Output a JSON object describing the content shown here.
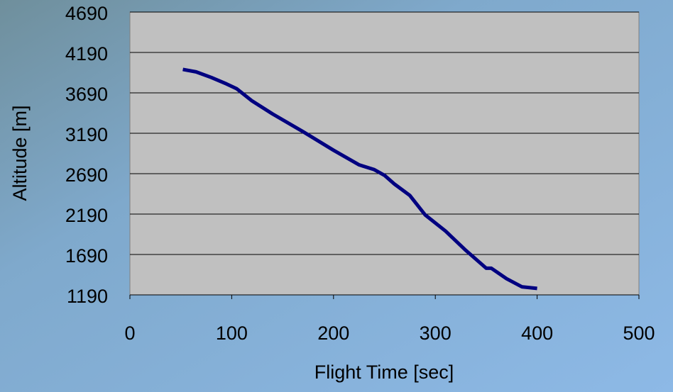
{
  "chart_data": {
    "type": "line",
    "x_label": "Flight Time [sec]",
    "y_label": "Altitude [m]",
    "series": [
      {
        "color": "#000080",
        "x": [
          52,
          65,
          80,
          95,
          105,
          120,
          140,
          170,
          200,
          225,
          240,
          250,
          260,
          275,
          290,
          310,
          330,
          350,
          355,
          370,
          385,
          400
        ],
        "values": [
          3980,
          3950,
          3880,
          3800,
          3740,
          3590,
          3430,
          3210,
          2980,
          2800,
          2740,
          2670,
          2560,
          2420,
          2180,
          1980,
          1740,
          1520,
          1520,
          1390,
          1290,
          1270
        ]
      }
    ],
    "xlim": [
      0,
      500
    ],
    "xticks": [
      0,
      100,
      200,
      300,
      400,
      500
    ],
    "ylim": [
      1190,
      4690
    ],
    "yticks": [
      1190,
      1690,
      2190,
      2690,
      3190,
      3690,
      4190,
      4690
    ],
    "grid": true
  }
}
